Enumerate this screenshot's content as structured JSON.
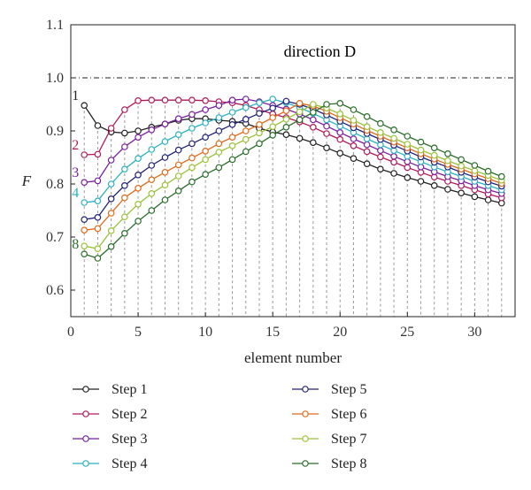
{
  "chart_data": {
    "type": "line",
    "title": "",
    "annotation": "direction D",
    "xlabel": "element number",
    "ylabel": "F",
    "xlim": [
      0,
      33
    ],
    "ylim": [
      0.55,
      1.1
    ],
    "xticks": [
      0,
      5,
      10,
      15,
      20,
      25,
      30
    ],
    "yticks": [
      0.6,
      0.7,
      0.8,
      0.9,
      1.0,
      1.1
    ],
    "reference_line": 1.0,
    "vertical_dashed_lines_at_elements": true,
    "legend_position": "bottom",
    "x": [
      1,
      2,
      3,
      4,
      5,
      6,
      7,
      8,
      9,
      10,
      11,
      12,
      13,
      14,
      15,
      16,
      17,
      18,
      19,
      20,
      21,
      22,
      23,
      24,
      25,
      26,
      27,
      28,
      29,
      30,
      31,
      32
    ],
    "series": [
      {
        "name": "Step 1",
        "label": "1",
        "color": "#222222",
        "values": [
          0.948,
          0.91,
          0.898,
          0.896,
          0.9,
          0.907,
          0.913,
          0.92,
          0.923,
          0.923,
          0.92,
          0.918,
          0.914,
          0.905,
          0.898,
          0.893,
          0.886,
          0.878,
          0.868,
          0.858,
          0.848,
          0.838,
          0.828,
          0.82,
          0.812,
          0.805,
          0.797,
          0.79,
          0.783,
          0.776,
          0.77,
          0.764
        ]
      },
      {
        "name": "Step 2",
        "label": "2",
        "color": "#b01a5a",
        "values": [
          0.855,
          0.856,
          0.905,
          0.94,
          0.957,
          0.958,
          0.958,
          0.958,
          0.958,
          0.957,
          0.955,
          0.953,
          0.948,
          0.94,
          0.932,
          0.925,
          0.917,
          0.907,
          0.895,
          0.884,
          0.872,
          0.861,
          0.851,
          0.841,
          0.831,
          0.822,
          0.813,
          0.805,
          0.797,
          0.789,
          0.781,
          0.774
        ]
      },
      {
        "name": "Step 3",
        "label": "3",
        "color": "#7a1f9e",
        "values": [
          0.803,
          0.806,
          0.845,
          0.87,
          0.888,
          0.902,
          0.913,
          0.923,
          0.931,
          0.94,
          0.948,
          0.958,
          0.96,
          0.955,
          0.948,
          0.941,
          0.932,
          0.921,
          0.909,
          0.897,
          0.885,
          0.874,
          0.863,
          0.852,
          0.842,
          0.832,
          0.823,
          0.814,
          0.806,
          0.797,
          0.789,
          0.782
        ]
      },
      {
        "name": "Step 4",
        "label": "4",
        "color": "#2ab0c0",
        "values": [
          0.765,
          0.768,
          0.8,
          0.828,
          0.848,
          0.865,
          0.88,
          0.893,
          0.905,
          0.915,
          0.925,
          0.935,
          0.944,
          0.953,
          0.96,
          0.953,
          0.944,
          0.933,
          0.921,
          0.909,
          0.897,
          0.885,
          0.874,
          0.863,
          0.852,
          0.842,
          0.832,
          0.823,
          0.814,
          0.805,
          0.797,
          0.789
        ]
      },
      {
        "name": "Step 5",
        "label": "",
        "color": "#22227a",
        "values": [
          0.733,
          0.737,
          0.772,
          0.797,
          0.817,
          0.835,
          0.85,
          0.864,
          0.876,
          0.888,
          0.9,
          0.912,
          0.922,
          0.933,
          0.943,
          0.956,
          0.95,
          0.941,
          0.93,
          0.918,
          0.906,
          0.895,
          0.884,
          0.873,
          0.862,
          0.851,
          0.841,
          0.832,
          0.822,
          0.813,
          0.804,
          0.796
        ]
      },
      {
        "name": "Step 6",
        "label": "",
        "color": "#e06a1a",
        "values": [
          0.713,
          0.716,
          0.745,
          0.774,
          0.792,
          0.808,
          0.822,
          0.836,
          0.849,
          0.862,
          0.876,
          0.888,
          0.9,
          0.912,
          0.925,
          0.938,
          0.952,
          0.947,
          0.937,
          0.925,
          0.913,
          0.901,
          0.89,
          0.879,
          0.868,
          0.857,
          0.847,
          0.837,
          0.828,
          0.819,
          0.81,
          0.801
        ]
      },
      {
        "name": "Step 7",
        "label": "",
        "color": "#9ac23a",
        "values": [
          0.683,
          0.678,
          0.712,
          0.738,
          0.762,
          0.782,
          0.798,
          0.815,
          0.831,
          0.846,
          0.86,
          0.872,
          0.884,
          0.896,
          0.908,
          0.922,
          0.936,
          0.95,
          0.943,
          0.932,
          0.92,
          0.908,
          0.897,
          0.886,
          0.875,
          0.864,
          0.854,
          0.844,
          0.834,
          0.825,
          0.816,
          0.807
        ]
      },
      {
        "name": "Step 8",
        "label": "8",
        "color": "#2a6e2a",
        "values": [
          0.668,
          0.66,
          0.682,
          0.707,
          0.73,
          0.75,
          0.77,
          0.787,
          0.804,
          0.818,
          0.831,
          0.846,
          0.861,
          0.876,
          0.892,
          0.907,
          0.921,
          0.935,
          0.95,
          0.952,
          0.94,
          0.927,
          0.914,
          0.902,
          0.89,
          0.879,
          0.868,
          0.857,
          0.846,
          0.835,
          0.824,
          0.814
        ]
      }
    ]
  }
}
